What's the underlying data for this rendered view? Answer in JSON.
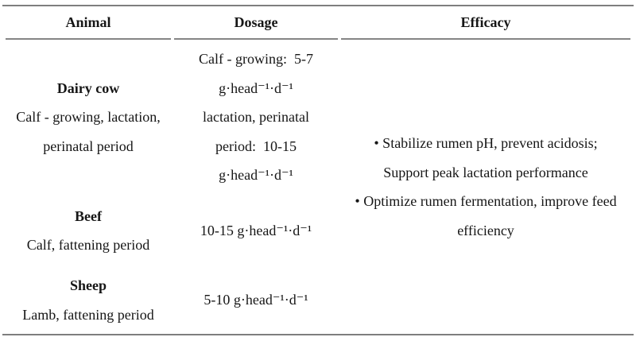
{
  "table": {
    "headers": [
      "Animal",
      "Dosage",
      "Efficacy"
    ],
    "rows": [
      {
        "animal": {
          "name": "Dairy cow",
          "detail_lines": [
            "Calf - growing, lactation,",
            "perinatal period"
          ]
        },
        "dosage_lines": [
          "Calf - growing:  5-7",
          "g·head⁻¹·d⁻¹",
          "lactation, perinatal",
          "period:  10-15",
          "g·head⁻¹·d⁻¹"
        ]
      },
      {
        "animal": {
          "name": "Beef",
          "detail_lines": [
            "Calf, fattening period"
          ]
        },
        "dosage_lines": [
          "10-15 g·head⁻¹·d⁻¹"
        ]
      },
      {
        "animal": {
          "name": "Sheep",
          "detail_lines": [
            "Lamb, fattening period"
          ]
        },
        "dosage_lines": [
          "5-10 g·head⁻¹·d⁻¹"
        ]
      }
    ],
    "efficacy_lines": [
      "• Stabilize rumen pH, prevent acidosis;",
      "Support peak lactation performance",
      "• Optimize rumen fermentation, improve feed",
      "efficiency"
    ]
  },
  "colors": {
    "rule": "#7e7e7e",
    "text": "#161616"
  }
}
